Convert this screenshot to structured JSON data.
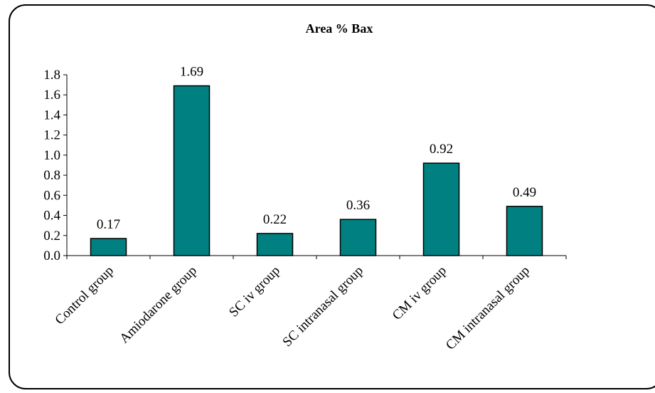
{
  "chart_data": {
    "type": "bar",
    "title": "Area % Bax",
    "categories": [
      "Control group",
      "Amiodarone group",
      "SC iv group",
      "SC intranasal group",
      "CM iv group",
      "CM intranasal group"
    ],
    "values": [
      0.17,
      1.69,
      0.22,
      0.36,
      0.92,
      0.49
    ],
    "value_labels": [
      "0.17",
      "1.69",
      "0.22",
      "0.36",
      "0.92",
      "0.49"
    ],
    "y_ticks": [
      "0.0",
      "0.2",
      "0.4",
      "0.6",
      "0.8",
      "1.0",
      "1.2",
      "1.4",
      "1.6",
      "1.8"
    ],
    "ylim": [
      0,
      1.8
    ],
    "xlabel": "",
    "ylabel": "",
    "grid": false,
    "legend": "none",
    "colors": {
      "bar_fill": "#008080",
      "bar_stroke": "#000000",
      "axis": "#000000"
    }
  }
}
